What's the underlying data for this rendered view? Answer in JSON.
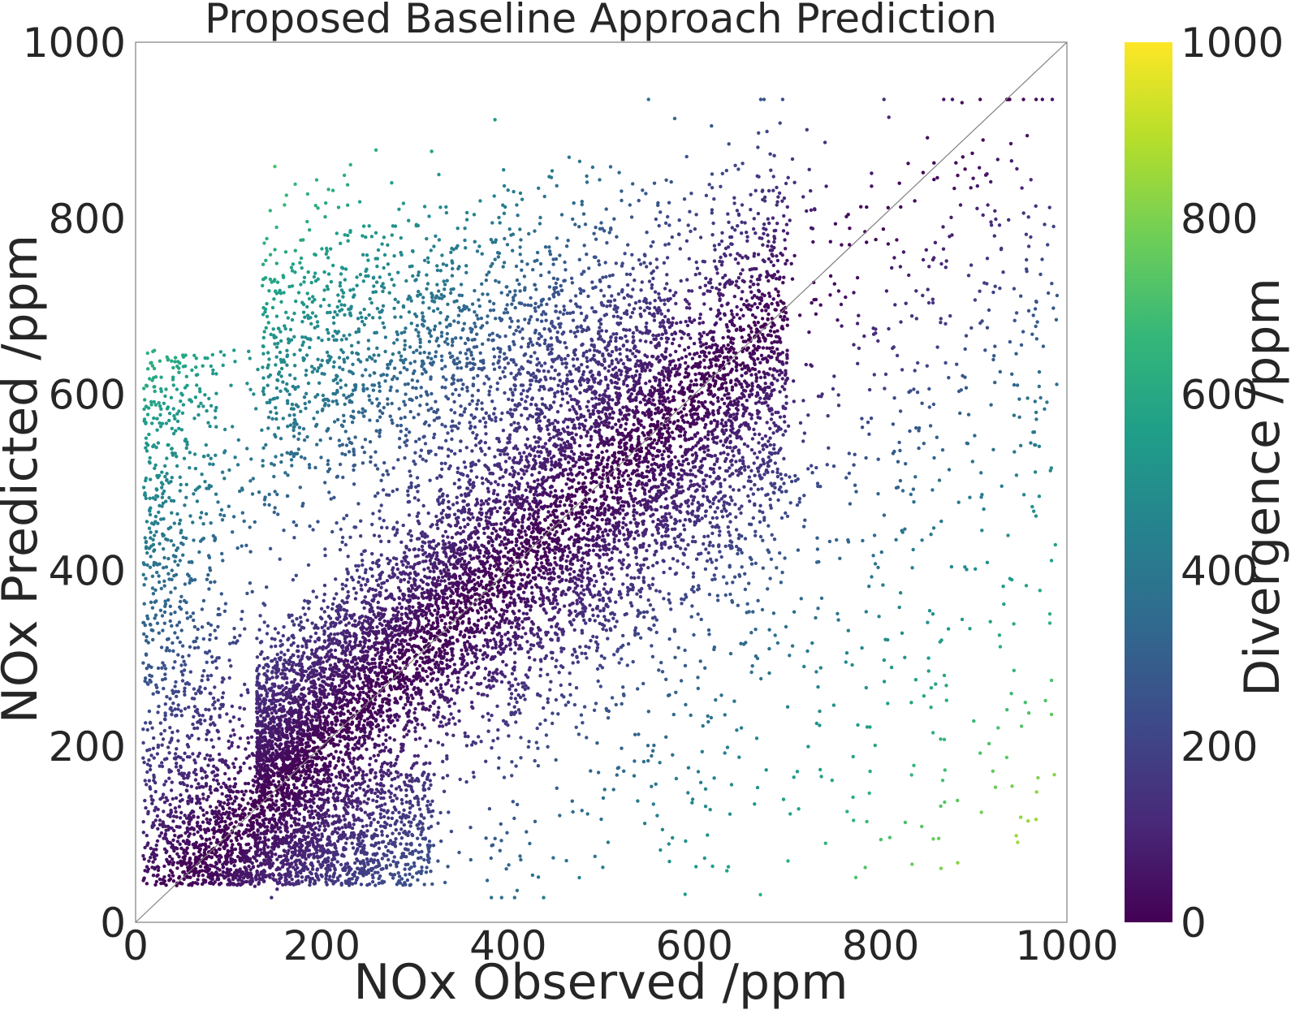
{
  "chart_data": {
    "type": "scatter",
    "title": "Proposed Baseline Approach Prediction",
    "xlabel": "NOx Observed /ppm",
    "ylabel": "NOx Predicted /ppm",
    "xlim": [
      0,
      1000
    ],
    "ylim": [
      0,
      1000
    ],
    "xticks": [
      "0",
      "200",
      "400",
      "600",
      "800",
      "1000"
    ],
    "yticks": [
      "0",
      "200",
      "400",
      "600",
      "800",
      "1000"
    ],
    "reference_line": {
      "from": [
        0,
        0
      ],
      "to": [
        1000,
        1000
      ],
      "color": "#808080"
    },
    "grid": false,
    "colorbar": {
      "label": "Divergence /ppm",
      "range": [
        0,
        1000
      ],
      "ticks": [
        "0",
        "200",
        "400",
        "600",
        "800",
        "1000"
      ],
      "colormap": "viridis",
      "colors": [
        "#440154",
        "#482878",
        "#3e4989",
        "#31688e",
        "#26828e",
        "#1f9e89",
        "#35b779",
        "#6ece58",
        "#b5de2b",
        "#fde725"
      ]
    },
    "point_color_encodes": "absolute divergence |predicted - observed| (ppm)",
    "clusters": [
      {
        "name": "main diagonal band",
        "observed_range": [
          130,
          700
        ],
        "predicted_center": "0.8 * observed + 90",
        "share": 0.55
      },
      {
        "name": "low-value cloud",
        "observed_range": [
          5,
          320
        ],
        "predicted_range": [
          40,
          230
        ],
        "share": 0.15
      },
      {
        "name": "upper over-prediction cloud",
        "observed_range": [
          130,
          600
        ],
        "predicted_range": [
          440,
          860
        ],
        "share": 0.15
      },
      {
        "name": "left vertical spread",
        "observed_range": [
          5,
          130
        ],
        "predicted_range": [
          40,
          650
        ],
        "share": 0.07
      },
      {
        "name": "sparse outliers",
        "observed_range": [
          400,
          990
        ],
        "predicted_range": [
          50,
          860
        ],
        "share": 0.08
      }
    ]
  }
}
